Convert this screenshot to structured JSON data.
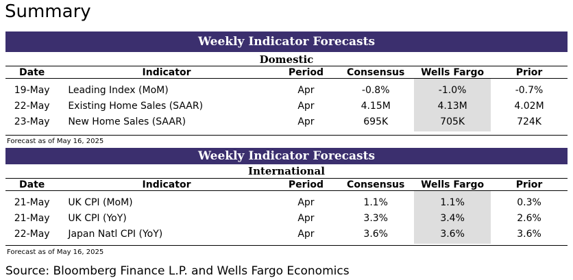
{
  "page_title": "Summary",
  "columns": [
    "Date",
    "Indicator",
    "Period",
    "Consensus",
    "Wells Fargo",
    "Prior"
  ],
  "domestic": {
    "banner": "Weekly Indicator Forecasts",
    "subheading": "Domestic",
    "rows": [
      {
        "date": "19-May",
        "indicator": "Leading Index (MoM)",
        "period": "Apr",
        "consensus": "-0.8%",
        "wells_fargo": "-1.0%",
        "prior": "-0.7%"
      },
      {
        "date": "22-May",
        "indicator": "Existing Home Sales (SAAR)",
        "period": "Apr",
        "consensus": "4.15M",
        "wells_fargo": "4.13M",
        "prior": "4.02M"
      },
      {
        "date": "23-May",
        "indicator": "New Home Sales (SAAR)",
        "period": "Apr",
        "consensus": "695K",
        "wells_fargo": "705K",
        "prior": "724K"
      }
    ],
    "note": "Forecast as of May 16, 2025"
  },
  "international": {
    "banner": "Weekly Indicator Forecasts",
    "subheading": "International",
    "rows": [
      {
        "date": "21-May",
        "indicator": "UK CPI (MoM)",
        "period": "Apr",
        "consensus": "1.1%",
        "wells_fargo": "1.1%",
        "prior": "0.3%"
      },
      {
        "date": "21-May",
        "indicator": "UK CPI (YoY)",
        "period": "Apr",
        "consensus": "3.3%",
        "wells_fargo": "3.4%",
        "prior": "2.6%"
      },
      {
        "date": "22-May",
        "indicator": "Japan Natl CPI (YoY)",
        "period": "Apr",
        "consensus": "3.6%",
        "wells_fargo": "3.6%",
        "prior": "3.6%"
      }
    ],
    "note": "Forecast as of May 16, 2025"
  },
  "source": "Source: Bloomberg Finance L.P. and Wells Fargo Economics",
  "colors": {
    "banner_bg": "#3b2f6e",
    "highlight_bg": "#dedede"
  }
}
